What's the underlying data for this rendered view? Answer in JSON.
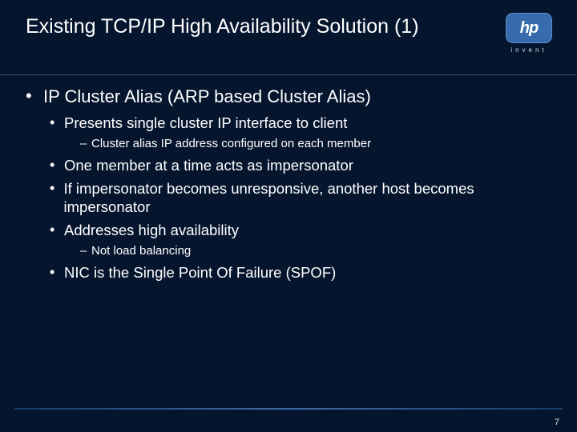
{
  "colors": {
    "background": "#06152e",
    "text": "#ffffff",
    "rule": "#3a4a63",
    "logo_bg": "#366cad",
    "footer_rule_mid": "#3e6aa8",
    "footer_rule_edge": "#1a3a66"
  },
  "header": {
    "title": "Existing TCP/IP High Availability Solution (1)",
    "logo_text": "hp",
    "logo_sub": "invent"
  },
  "body": {
    "lvl1_bullet": "•",
    "lvl2_bullet": "•",
    "lvl3_bullet": "–",
    "lvl1": "IP Cluster Alias (ARP based Cluster Alias)",
    "l2_a": "Presents single cluster IP interface to client",
    "l3_a": "Cluster alias IP address configured on each member",
    "l2_b": "One member at a time acts as impersonator",
    "l2_c": "If impersonator becomes unresponsive, another host becomes impersonator",
    "l2_d": "Addresses high availability",
    "l3_b": "Not load balancing",
    "l2_e": "NIC is the Single Point Of Failure (SPOF)"
  },
  "footer": {
    "page": "7"
  }
}
